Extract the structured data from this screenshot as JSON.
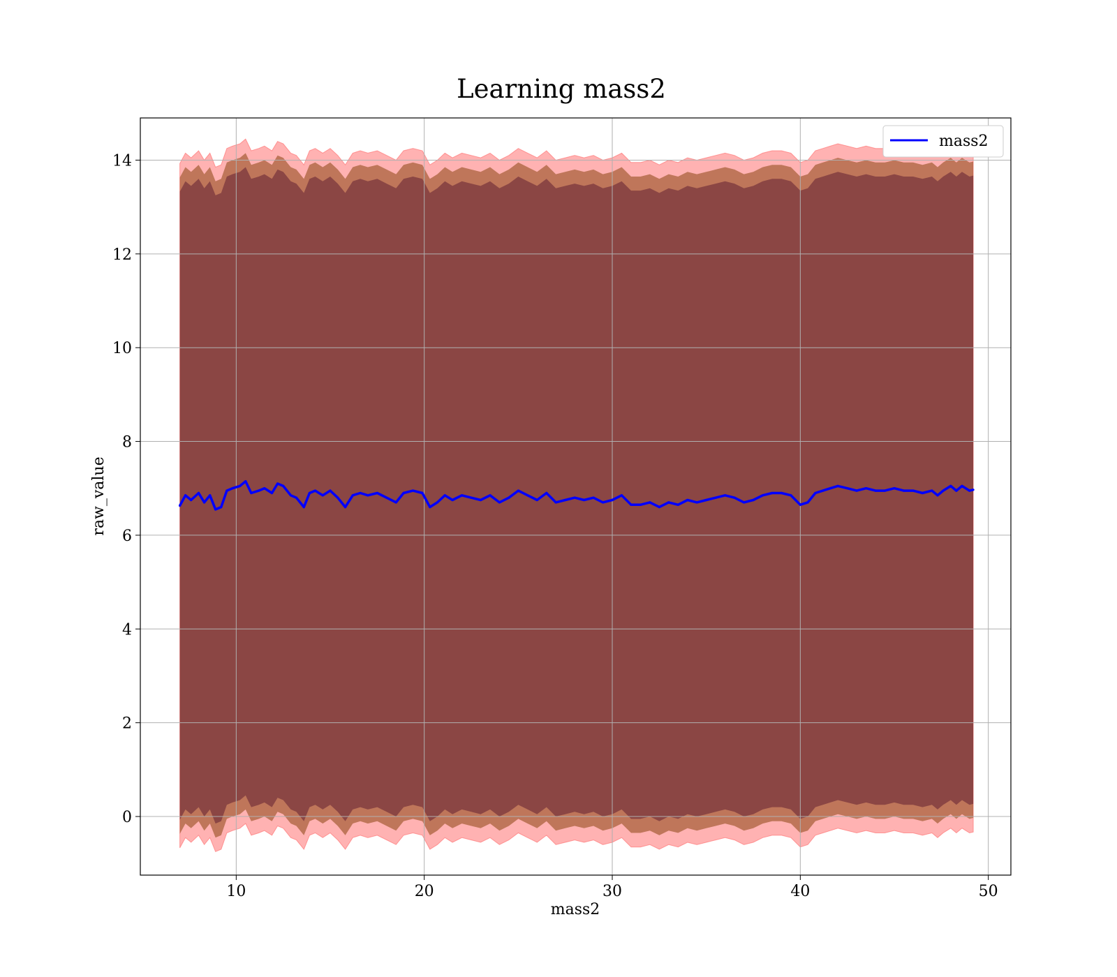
{
  "chart_data": {
    "type": "line",
    "title": "Learning mass2",
    "xlabel": "mass2",
    "ylabel": "raw_value",
    "xlim": [
      4.9,
      51.2
    ],
    "ylim": [
      -1.25,
      14.9
    ],
    "x_ticks": [
      10,
      20,
      30,
      40,
      50
    ],
    "y_ticks": [
      0,
      2,
      4,
      6,
      8,
      10,
      12,
      14
    ],
    "x_tick_labels": [
      "10",
      "20",
      "30",
      "40",
      "50"
    ],
    "y_tick_labels": [
      "0",
      "2",
      "4",
      "6",
      "8",
      "10",
      "12",
      "14"
    ],
    "grid": true,
    "legend": {
      "position": "top-right",
      "entries": [
        "mass2"
      ]
    },
    "colors": {
      "line": "#0000ff",
      "band_outer": "#ff6666",
      "band_mid": "#8b4513",
      "band_inner": "#4b0d2a"
    },
    "bands": {
      "outer_sd_multiple": 7.3,
      "mid_sd_multiple": 7.0,
      "inner_sd_multiple": 6.7
    },
    "series": [
      {
        "name": "mass2",
        "x": [
          7.0,
          7.3,
          7.6,
          8.0,
          8.3,
          8.6,
          8.9,
          9.2,
          9.5,
          9.8,
          10.2,
          10.5,
          10.8,
          11.2,
          11.5,
          11.9,
          12.2,
          12.5,
          12.9,
          13.2,
          13.6,
          13.9,
          14.2,
          14.6,
          15.0,
          15.4,
          15.8,
          16.2,
          16.6,
          17.0,
          17.5,
          18.0,
          18.5,
          18.9,
          19.4,
          19.9,
          20.3,
          20.7,
          21.1,
          21.5,
          22.0,
          22.5,
          23.0,
          23.5,
          24.0,
          24.5,
          25.0,
          25.5,
          26.0,
          26.5,
          27.0,
          27.5,
          28.0,
          28.5,
          29.0,
          29.5,
          30.0,
          30.5,
          31.0,
          31.5,
          32.0,
          32.5,
          33.0,
          33.5,
          34.0,
          34.5,
          35.0,
          35.5,
          36.0,
          36.5,
          37.0,
          37.5,
          38.0,
          38.5,
          39.0,
          39.5,
          40.0,
          40.4,
          40.8,
          41.2,
          41.6,
          42.0,
          42.5,
          43.0,
          43.5,
          44.0,
          44.5,
          45.0,
          45.5,
          46.0,
          46.5,
          47.0,
          47.3,
          47.6,
          48.0,
          48.3,
          48.6,
          49.0,
          49.2
        ],
        "values": [
          6.63,
          6.85,
          6.75,
          6.9,
          6.7,
          6.85,
          6.55,
          6.6,
          6.95,
          7.0,
          7.05,
          7.15,
          6.9,
          6.95,
          7.0,
          6.9,
          7.1,
          7.05,
          6.85,
          6.8,
          6.6,
          6.9,
          6.95,
          6.85,
          6.95,
          6.8,
          6.6,
          6.85,
          6.9,
          6.85,
          6.9,
          6.8,
          6.7,
          6.9,
          6.95,
          6.9,
          6.6,
          6.7,
          6.85,
          6.75,
          6.85,
          6.8,
          6.75,
          6.85,
          6.7,
          6.8,
          6.95,
          6.85,
          6.75,
          6.9,
          6.7,
          6.75,
          6.8,
          6.75,
          6.8,
          6.7,
          6.75,
          6.85,
          6.65,
          6.65,
          6.7,
          6.6,
          6.7,
          6.65,
          6.75,
          6.7,
          6.75,
          6.8,
          6.85,
          6.8,
          6.7,
          6.75,
          6.85,
          6.9,
          6.9,
          6.85,
          6.65,
          6.7,
          6.9,
          6.95,
          7.0,
          7.05,
          7.0,
          6.95,
          7.0,
          6.95,
          6.95,
          7.0,
          6.95,
          6.95,
          6.9,
          6.95,
          6.85,
          6.95,
          7.05,
          6.95,
          7.05,
          6.95,
          6.97
        ]
      }
    ]
  }
}
